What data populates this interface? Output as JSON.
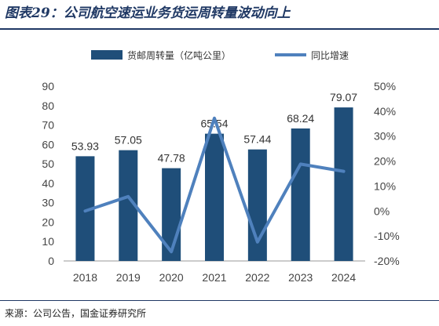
{
  "title": "图表29：公司航空速运业务货运周转量波动向上",
  "source": "来源：公司公告，国金证券研究所",
  "colors": {
    "bar": "#1f4e79",
    "line": "#4f81bd",
    "rule": "#1f3864"
  },
  "chart_data": {
    "type": "bar",
    "categories": [
      "2018",
      "2019",
      "2020",
      "2021",
      "2022",
      "2023",
      "2024"
    ],
    "series": [
      {
        "name": "货邮周转量（亿吨公里）",
        "type": "bar",
        "axis": "left",
        "values": [
          53.93,
          57.05,
          47.78,
          65.54,
          57.44,
          68.24,
          79.07
        ],
        "labels": [
          "53.93",
          "57.05",
          "47.78",
          "65.54",
          "57.44",
          "68.24",
          "79.07"
        ]
      },
      {
        "name": "同比增速",
        "type": "line",
        "axis": "right",
        "values": [
          0.0,
          5.8,
          -16.3,
          37.2,
          -12.4,
          18.8,
          15.9
        ]
      }
    ],
    "y_left": {
      "min": 0,
      "max": 90,
      "ticks": [
        "0",
        "10",
        "20",
        "30",
        "40",
        "50",
        "60",
        "70",
        "80",
        "90"
      ]
    },
    "y_right": {
      "min": -20,
      "max": 50,
      "ticks": [
        "-20%",
        "-10%",
        "0%",
        "10%",
        "20%",
        "30%",
        "40%",
        "50%"
      ]
    },
    "legend_position": "top-center",
    "grid": false
  }
}
